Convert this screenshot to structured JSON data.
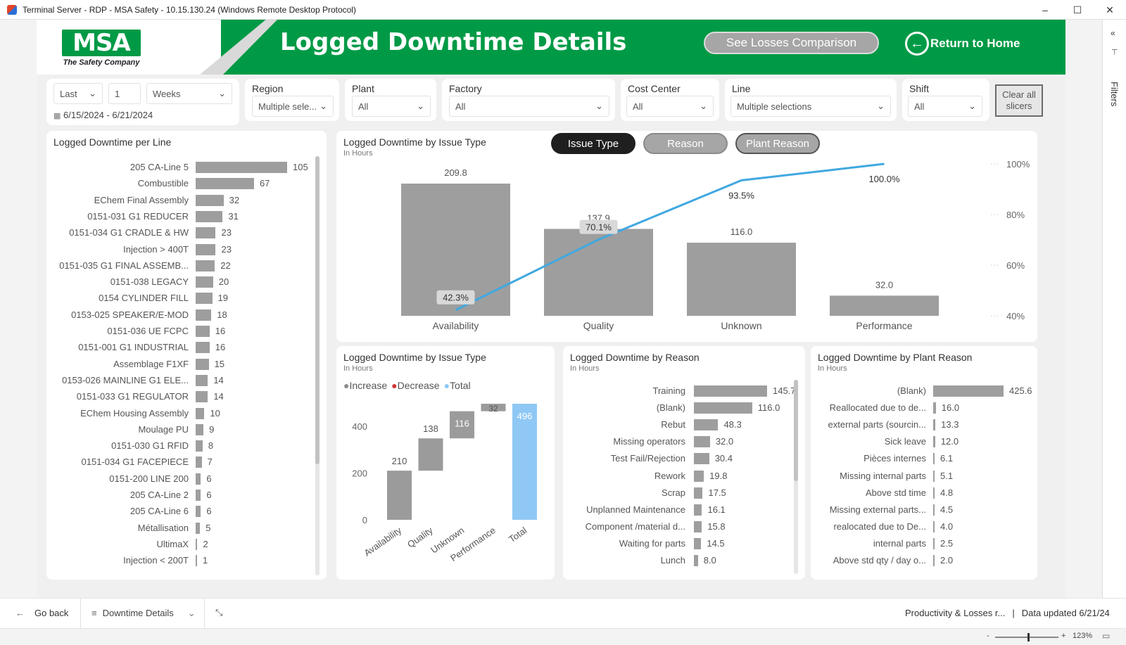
{
  "window": {
    "title": "Terminal Server - RDP - MSA Safety - 10.15.130.24 (Windows Remote Desktop Protocol)",
    "minimize": "–",
    "maximize": "☐",
    "close": "✕"
  },
  "filters_pane": {
    "label": "Filters",
    "collapse": "«",
    "icon": "⊤"
  },
  "header": {
    "logo_text": "MSA",
    "logo_tagline": "The Safety Company",
    "title": "Logged Downtime Details",
    "compare_button": "See Losses Comparison",
    "home_button": "Return to Home",
    "home_arrow": "←"
  },
  "date_slicer": {
    "mode": "Last",
    "count": "1",
    "unit": "Weeks",
    "range": "6/15/2024 - 6/21/2024"
  },
  "slicers": [
    {
      "title": "Region",
      "value": "Multiple sele..."
    },
    {
      "title": "Plant",
      "value": "All"
    },
    {
      "title": "Factory",
      "value": "All"
    },
    {
      "title": "Cost Center",
      "value": "All"
    },
    {
      "title": "Line",
      "value": "Multiple selections"
    },
    {
      "title": "Shift",
      "value": "All"
    }
  ],
  "clear_button": {
    "line1": "Clear all",
    "line2": "slicers"
  },
  "per_line": {
    "title": "Logged Downtime per Line",
    "rows": [
      {
        "label": "205 CA-Line 5",
        "value": 105
      },
      {
        "label": "Combustible",
        "value": 67
      },
      {
        "label": "EChem Final Assembly",
        "value": 32
      },
      {
        "label": "0151-031 G1 REDUCER",
        "value": 31
      },
      {
        "label": "0151-034 G1 CRADLE & HW",
        "value": 23
      },
      {
        "label": "Injection > 400T",
        "value": 23
      },
      {
        "label": "0151-035 G1 FINAL ASSEMB...",
        "value": 22
      },
      {
        "label": "0151-038 LEGACY",
        "value": 20
      },
      {
        "label": "0154 CYLINDER FILL",
        "value": 19
      },
      {
        "label": "0153-025 SPEAKER/E-MOD",
        "value": 18
      },
      {
        "label": "0151-036 UE FCPC",
        "value": 16
      },
      {
        "label": "0151-001 G1 INDUSTRIAL",
        "value": 16
      },
      {
        "label": "Assemblage F1XF",
        "value": 15
      },
      {
        "label": "0153-026 MAINLINE G1 ELE...",
        "value": 14
      },
      {
        "label": "0151-033 G1 REGULATOR",
        "value": 14
      },
      {
        "label": "EChem Housing Assembly",
        "value": 10
      },
      {
        "label": "Moulage PU",
        "value": 9
      },
      {
        "label": "0151-030 G1 RFID",
        "value": 8
      },
      {
        "label": "0151-034 G1 FACEPIECE",
        "value": 7
      },
      {
        "label": "0151-200 LINE 200",
        "value": 6
      },
      {
        "label": "205 CA-Line 2",
        "value": 6
      },
      {
        "label": "205 CA-Line 6",
        "value": 6
      },
      {
        "label": "Métallisation",
        "value": 5
      },
      {
        "label": "UltimaX",
        "value": 2
      },
      {
        "label": "Injection < 200T",
        "value": 1
      }
    ]
  },
  "pareto": {
    "title": "Logged Downtime by Issue Type",
    "subtitle": "In Hours",
    "toggles": [
      "Issue Type",
      "Reason",
      "Plant Reason"
    ],
    "chart_data": {
      "type": "bar",
      "categories": [
        "Availability",
        "Quality",
        "Unknown",
        "Performance"
      ],
      "values": [
        209.8,
        137.9,
        116.0,
        32.0
      ],
      "value_labels": [
        "209.8",
        "137.9",
        "116.0",
        "32.0"
      ],
      "cumulative_pct": [
        42.3,
        70.1,
        93.5,
        100.0
      ],
      "cumulative_labels": [
        "42.3%",
        "70.1%",
        "93.5%",
        "100.0%"
      ],
      "y2_ticks": [
        "100%",
        "80%",
        "60%",
        "40%"
      ],
      "y2_range": [
        40,
        100
      ],
      "bar_color": "#9e9e9e",
      "line_color": "#41a8e0"
    }
  },
  "waterfall": {
    "title": "Logged Downtime by Issue Type",
    "subtitle": "In Hours",
    "legend": [
      {
        "name": "Increase",
        "color": "#8c8c8c"
      },
      {
        "name": "Decrease",
        "color": "#d13438"
      },
      {
        "name": "Total",
        "color": "#8fc8f5"
      }
    ],
    "chart_data": {
      "type": "bar",
      "categories": [
        "Availability",
        "Quality",
        "Unknown",
        "Performance",
        "Total"
      ],
      "values": [
        210,
        138,
        116,
        32,
        496
      ],
      "value_labels": [
        "210",
        "138",
        "116",
        "32",
        "496"
      ],
      "y_ticks": [
        "400",
        "200",
        "0"
      ],
      "ylim": [
        0,
        496
      ]
    }
  },
  "by_reason": {
    "title": "Logged Downtime by Reason",
    "subtitle": "In Hours",
    "rows": [
      {
        "label": "Training",
        "value": 145.7,
        "text": "145.7"
      },
      {
        "label": "(Blank)",
        "value": 116.0,
        "text": "116.0"
      },
      {
        "label": "Rebut",
        "value": 48.3,
        "text": "48.3"
      },
      {
        "label": "Missing operators",
        "value": 32.0,
        "text": "32.0"
      },
      {
        "label": "Test Fail/Rejection",
        "value": 30.4,
        "text": "30.4"
      },
      {
        "label": "Rework",
        "value": 19.8,
        "text": "19.8"
      },
      {
        "label": "Scrap",
        "value": 17.5,
        "text": "17.5"
      },
      {
        "label": "Unplanned Maintenance",
        "value": 16.1,
        "text": "16.1"
      },
      {
        "label": "Component /material d...",
        "value": 15.8,
        "text": "15.8"
      },
      {
        "label": "Waiting for parts",
        "value": 14.5,
        "text": "14.5"
      },
      {
        "label": "Lunch",
        "value": 8.0,
        "text": "8.0"
      }
    ]
  },
  "by_plant_reason": {
    "title": "Logged Downtime by Plant Reason",
    "subtitle": "In Hours",
    "rows": [
      {
        "label": "(Blank)",
        "value": 425.6,
        "text": "425.6"
      },
      {
        "label": "Reallocated due to de...",
        "value": 16.0,
        "text": "16.0"
      },
      {
        "label": "external parts (sourcin...",
        "value": 13.3,
        "text": "13.3"
      },
      {
        "label": "Sick leave",
        "value": 12.0,
        "text": "12.0"
      },
      {
        "label": "Pièces internes",
        "value": 6.1,
        "text": "6.1"
      },
      {
        "label": "Missing internal parts",
        "value": 5.1,
        "text": "5.1"
      },
      {
        "label": "Above std time",
        "value": 4.8,
        "text": "4.8"
      },
      {
        "label": "Missing external parts...",
        "value": 4.5,
        "text": "4.5"
      },
      {
        "label": "realocated due to De...",
        "value": 4.0,
        "text": "4.0"
      },
      {
        "label": "internal parts",
        "value": 2.5,
        "text": "2.5"
      },
      {
        "label": "Above std qty / day o...",
        "value": 2.0,
        "text": "2.0"
      }
    ]
  },
  "bottom": {
    "go_back": "Go back",
    "page_name": "Downtime Details",
    "report_name": "Productivity & Losses r...",
    "data_updated": "Data updated 6/21/24",
    "zoom": "123%",
    "zoom_minus": "-",
    "zoom_plus": "+"
  }
}
